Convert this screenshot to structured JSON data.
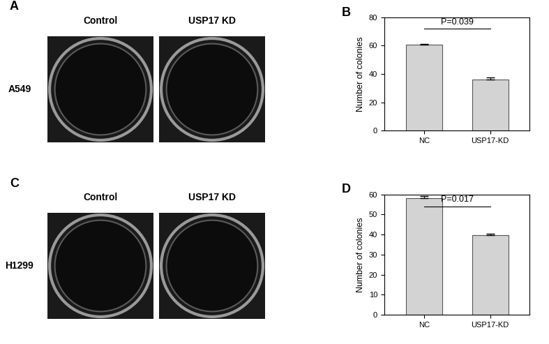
{
  "images": [
    {
      "panel_label": "A",
      "row_label": "A549",
      "column_labels": [
        "Control",
        "USP17 KD"
      ]
    },
    {
      "panel_label": "C",
      "row_label": "H1299",
      "column_labels": [
        "Control",
        "USP17 KD"
      ]
    }
  ],
  "chart_data": [
    {
      "type": "bar",
      "panel_label": "B",
      "y_label": "Number of colonies",
      "categories": [
        "NC",
        "USP17-KD"
      ],
      "values": [
        60.5,
        36
      ],
      "errors": [
        0.8,
        1.5
      ],
      "color": "#d3d3d3",
      "ylim": [
        0,
        80
      ],
      "yticks": [
        0,
        20,
        40,
        60,
        80
      ],
      "annotations": [
        "P=0.039"
      ]
    },
    {
      "type": "bar",
      "panel_label": "D",
      "y_label": "Number of colonies",
      "categories": [
        "NC",
        "USP17-KD"
      ],
      "values": [
        58,
        39.5
      ],
      "errors": [
        1.3,
        0.7
      ],
      "color": "#d3d3d3",
      "ylim": [
        0,
        60
      ],
      "yticks": [
        0,
        10,
        20,
        30,
        40,
        50,
        60
      ],
      "annotations": [
        "P=0.017"
      ]
    }
  ]
}
